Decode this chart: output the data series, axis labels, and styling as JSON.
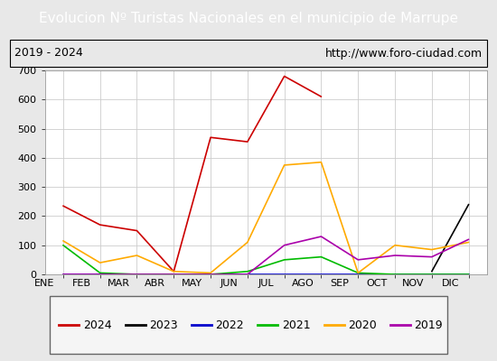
{
  "title": "Evolucion Nº Turistas Nacionales en el municipio de Marrupe",
  "subtitle_left": "2019 - 2024",
  "subtitle_right": "http://www.foro-ciudad.com",
  "months": [
    "ENE",
    "FEB",
    "MAR",
    "ABR",
    "MAY",
    "JUN",
    "JUL",
    "AGO",
    "SEP",
    "OCT",
    "NOV",
    "DIC"
  ],
  "series": {
    "2024": [
      235,
      170,
      150,
      10,
      470,
      455,
      680,
      610,
      null,
      null,
      null,
      null
    ],
    "2023": [
      null,
      null,
      null,
      null,
      null,
      null,
      null,
      null,
      null,
      null,
      10,
      240
    ],
    "2022": [
      0,
      0,
      0,
      0,
      0,
      0,
      0,
      0,
      0,
      0,
      0,
      0
    ],
    "2021": [
      100,
      5,
      0,
      0,
      0,
      10,
      50,
      60,
      5,
      0,
      0,
      0
    ],
    "2020": [
      115,
      40,
      65,
      10,
      5,
      110,
      375,
      385,
      5,
      100,
      85,
      110
    ],
    "2019": [
      0,
      0,
      0,
      0,
      0,
      0,
      100,
      130,
      50,
      65,
      60,
      120
    ]
  },
  "colors": {
    "2024": "#cc0000",
    "2023": "#000000",
    "2022": "#0000cc",
    "2021": "#00bb00",
    "2020": "#ffaa00",
    "2019": "#aa00aa"
  },
  "ylim": [
    0,
    700
  ],
  "yticks": [
    0,
    100,
    200,
    300,
    400,
    500,
    600,
    700
  ],
  "title_bg_color": "#4472c4",
  "title_text_color": "#ffffff",
  "plot_bg_color": "#ffffff",
  "outer_bg_color": "#e8e8e8",
  "title_fontsize": 11,
  "subtitle_fontsize": 9,
  "axis_fontsize": 8,
  "legend_fontsize": 9
}
